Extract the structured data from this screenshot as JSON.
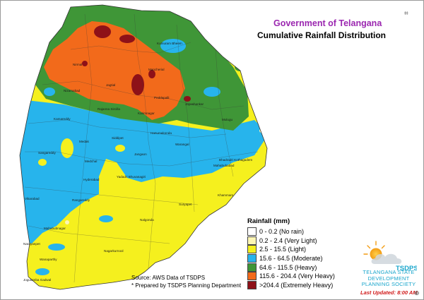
{
  "header": {
    "government": "Government of Telangana",
    "title": "Cumulative Rainfall Distribution",
    "government_color": "#9b27b0"
  },
  "legend": {
    "title": "Rainfall (mm)",
    "items": [
      {
        "label": "0 - 0.2 (No rain)",
        "color": "#ffffff"
      },
      {
        "label": "0.2 - 2.4 (Very Light)",
        "color": "#fdf6b4"
      },
      {
        "label": "2.5 - 15.5 (Light)",
        "color": "#f5f01e"
      },
      {
        "label": "15.6 - 64.5 (Moderate)",
        "color": "#27b4ec"
      },
      {
        "label": "64.6 - 115.5 (Heavy)",
        "color": "#3f9637"
      },
      {
        "label": "115.6 - 204.4 (Very Heavy)",
        "color": "#f26a1b"
      },
      {
        "label": ">204.4 (Extremely Heavy)",
        "color": "#8e1118"
      }
    ]
  },
  "source": {
    "line1": "Source: AWS Data of TSDPS",
    "line2": "* Prepared by TSDPS Planning Department"
  },
  "logo": {
    "abbreviation": "TSDPS",
    "org_line1": "TELANGANA STATE",
    "org_line2": "DEVELOPMENT",
    "org_line3": "PLANNING SOCIETY",
    "icon": "sun-cloud-logo-icon"
  },
  "last_updated": {
    "text": "Last Updated: 8:00 AM",
    "color": "#d11a1a"
  },
  "districts": {
    "kumuram_bheem": "Kumuram Bheem",
    "mancherial": "Mancherial",
    "jagtial": "Jagtial",
    "nirmal": "Nirmal",
    "nizamabad": "Nizamabad",
    "peddapalli": "Peddapalli",
    "jayashankar": "Jayashankar",
    "rajanna_sircilla": "Rajanna Sircilla",
    "karimnagar": "Karimnagar",
    "kamareddy": "Kamareddy",
    "mulugu": "Mulugu",
    "hanumakonda": "Hanumakonda",
    "siddipet": "Siddipet",
    "medak": "Medak",
    "warangal": "Warangal",
    "sangareddy": "Sangareddy",
    "jangaon": "Jangaon",
    "medchal": "Medchal",
    "bhadradri_kothagudem": "Bhadradri Kothagudem",
    "mahabubabad": "Mahabubabad",
    "yadadri": "Yadadri Bhuvanagiri",
    "hyderabad": "Hyderabad",
    "rangareddy": "Rangareddy",
    "vikarabad": "Vikarabad",
    "khammam": "Khammam",
    "suryapet": "Suryapet",
    "nalgonda": "Nalgonda",
    "mahabubnagar": "Mahabubnagar",
    "narayanpet": "Narayanpet",
    "nagarkurnool": "Nagarkurnool",
    "wanaparthy": "Wanaparthy",
    "jogulamba_gadwal": "Jogulamba Gadwal"
  }
}
